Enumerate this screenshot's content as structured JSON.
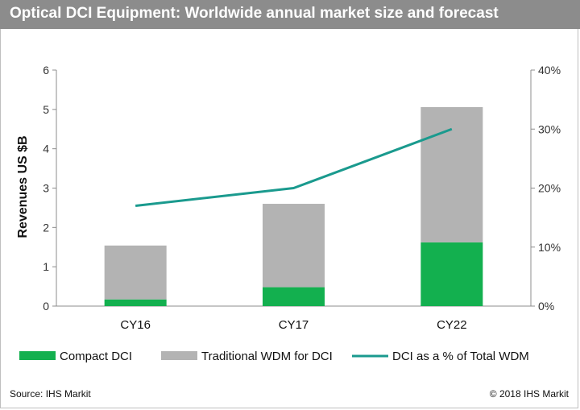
{
  "title": "Optical DCI Equipment: Worldwide annual market size and forecast",
  "source": "Source: IHS Markit",
  "copyright": "© 2018 IHS Markit",
  "chart_data": {
    "type": "bar",
    "stacked": true,
    "categories": [
      "CY16",
      "CY17",
      "CY22"
    ],
    "series": [
      {
        "name": "Compact DCI",
        "type": "bar",
        "axis": "left",
        "color": "#13b04f",
        "values": [
          0.17,
          0.48,
          1.62
        ]
      },
      {
        "name": "Traditional WDM for DCI",
        "type": "bar",
        "axis": "left",
        "color": "#b3b3b3",
        "values": [
          1.37,
          2.12,
          3.44
        ]
      },
      {
        "name": "DCI as a % of Total WDM",
        "type": "line",
        "axis": "right",
        "color": "#1a9a8e",
        "values": [
          0.17,
          0.2,
          0.3
        ]
      }
    ],
    "ylabel": "Revenues US $B",
    "ylim": [
      0,
      6
    ],
    "yticks": [
      "0",
      "1",
      "2",
      "3",
      "4",
      "5",
      "6"
    ],
    "y2lim": [
      0,
      0.4
    ],
    "y2ticks": [
      "0%",
      "10%",
      "20%",
      "30%",
      "40%"
    ],
    "grid": false,
    "legend_position": "bottom"
  }
}
